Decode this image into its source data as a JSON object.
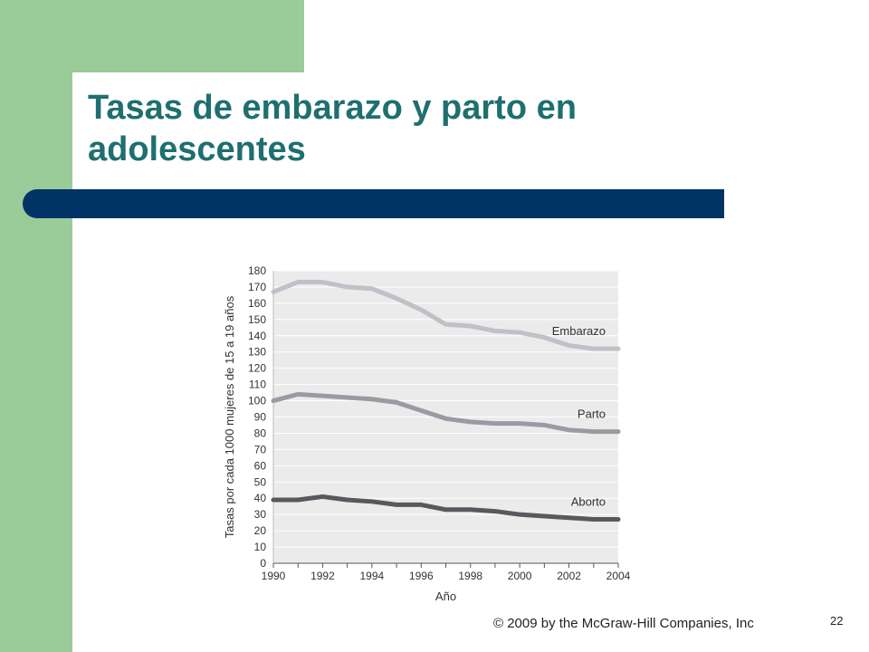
{
  "slide": {
    "title": "Tasas de embarazo y parto en adolescentes",
    "footer": "© 2009 by the McGraw-Hill Companies, Inc",
    "page_number": "22",
    "colors": {
      "green": "#99cc99",
      "navy": "#003366",
      "title": "#1f6f6f"
    }
  },
  "chart_data": {
    "type": "line",
    "title": "",
    "xlabel": "Año",
    "ylabel": "Tasas por cada 1000 mujeres de 15 a 19 años",
    "xlim": [
      1990,
      2004
    ],
    "ylim": [
      0,
      180
    ],
    "x_ticks": [
      1990,
      1991,
      1992,
      1993,
      1994,
      1995,
      1996,
      1997,
      1998,
      1999,
      2000,
      2001,
      2002,
      2003,
      2004
    ],
    "x_tick_labels": [
      "1990",
      "1992",
      "1994",
      "1996",
      "1998",
      "2000",
      "2002",
      "2004"
    ],
    "y_ticks": [
      0,
      10,
      20,
      30,
      40,
      50,
      60,
      70,
      80,
      90,
      100,
      110,
      120,
      130,
      140,
      150,
      160,
      170,
      180
    ],
    "grid": true,
    "x": [
      1990,
      1991,
      1992,
      1993,
      1994,
      1995,
      1996,
      1997,
      1998,
      1999,
      2000,
      2001,
      2002,
      2003,
      2004
    ],
    "series": [
      {
        "name": "Embarazo",
        "color": "#c0c0c8",
        "values": [
          167,
          173,
          173,
          170,
          169,
          163,
          156,
          147,
          146,
          143,
          142,
          139,
          134,
          132,
          132
        ]
      },
      {
        "name": "Parto",
        "color": "#9a9aa2",
        "values": [
          100,
          104,
          103,
          102,
          101,
          99,
          94,
          89,
          87,
          86,
          86,
          85,
          82,
          81,
          81
        ]
      },
      {
        "name": "Aborto",
        "color": "#58585e",
        "values": [
          39,
          39,
          41,
          39,
          38,
          36,
          36,
          33,
          33,
          32,
          30,
          29,
          28,
          27,
          27
        ]
      }
    ]
  }
}
